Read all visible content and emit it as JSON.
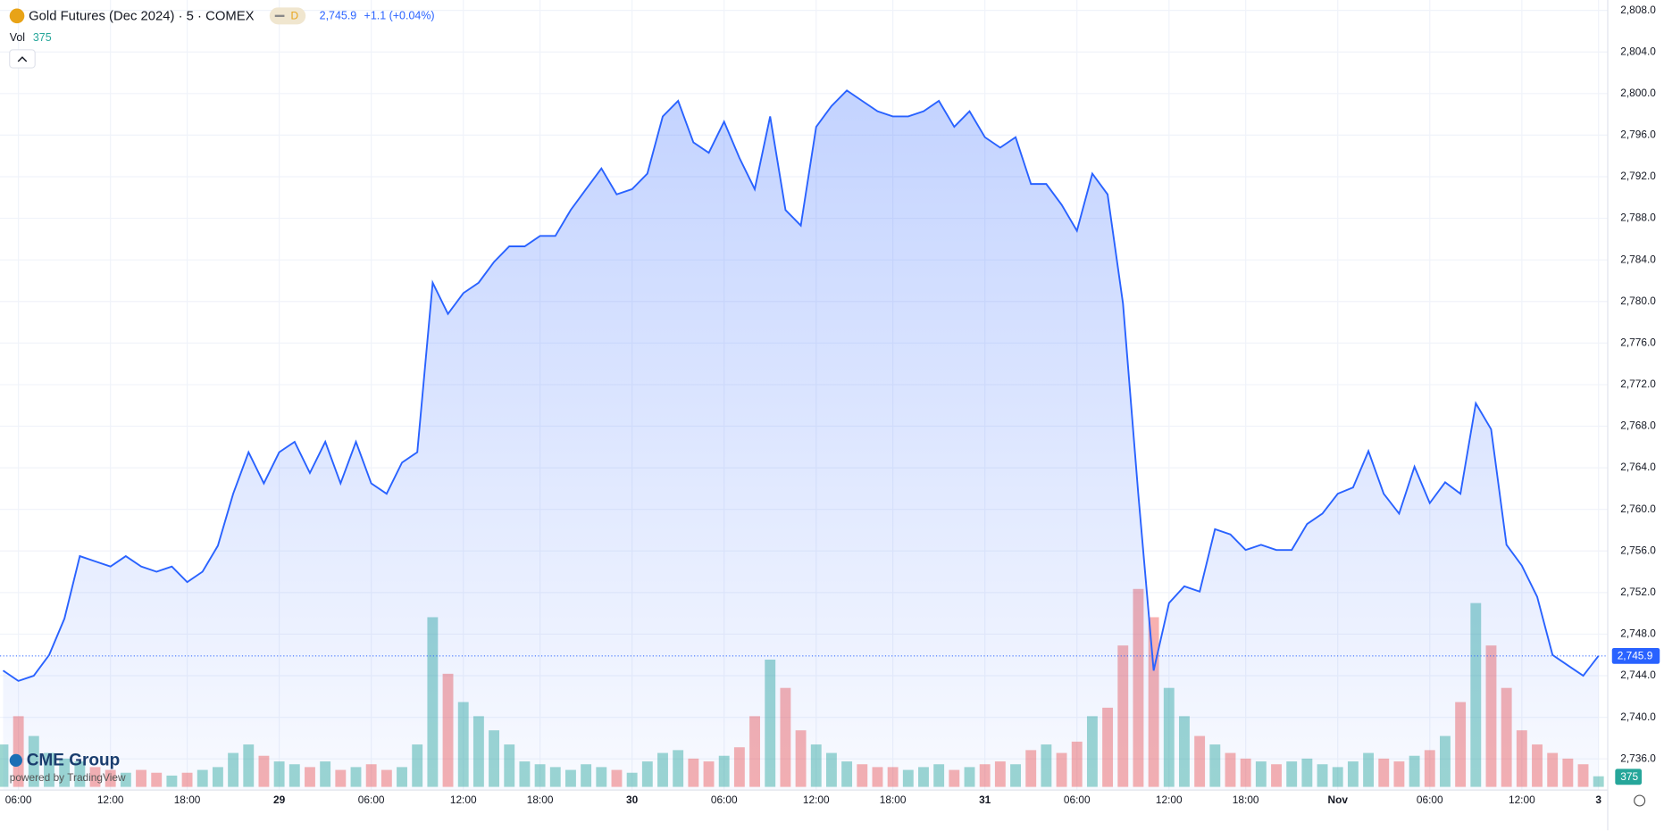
{
  "header": {
    "symbol": "Gold Futures (Dec 2024) · 5 · COMEX",
    "interval_badge": "D",
    "change": "+1.1 (+0.04%)",
    "vol_label": "Vol",
    "vol_value": "375"
  },
  "branding": {
    "name": "CME Group",
    "powered": "powered by TradingView"
  },
  "chart_data": {
    "type": "area",
    "last_price": {
      "value": 2745.9,
      "label": "2,745.9"
    },
    "xlim": [
      -0.2,
      104.6
    ],
    "xticks": [
      {
        "value": 1,
        "label": "06:00"
      },
      {
        "value": 7,
        "label": "12:00"
      },
      {
        "value": 12,
        "label": "18:00"
      },
      {
        "value": 18,
        "label": "29"
      },
      {
        "value": 24,
        "label": "06:00"
      },
      {
        "value": 30,
        "label": "12:00"
      },
      {
        "value": 35,
        "label": "18:00"
      },
      {
        "value": 41,
        "label": "30"
      },
      {
        "value": 47,
        "label": "06:00"
      },
      {
        "value": 53,
        "label": "12:00"
      },
      {
        "value": 58,
        "label": "18:00"
      },
      {
        "value": 64,
        "label": "31"
      },
      {
        "value": 70,
        "label": "06:00"
      },
      {
        "value": 76,
        "label": "12:00"
      },
      {
        "value": 81,
        "label": "18:00"
      },
      {
        "value": 87,
        "label": "Nov"
      },
      {
        "value": 93,
        "label": "06:00"
      },
      {
        "value": 99,
        "label": "12:00"
      },
      {
        "value": 104,
        "label": "3"
      }
    ],
    "ylim": [
      2733,
      2809
    ],
    "yticks": [
      {
        "value": 2736,
        "label": "2,736.0"
      },
      {
        "value": 2740,
        "label": "2,740.0"
      },
      {
        "value": 2744,
        "label": "2,744.0"
      },
      {
        "value": 2748,
        "label": "2,748.0"
      },
      {
        "value": 2752,
        "label": "2,752.0"
      },
      {
        "value": 2756,
        "label": "2,756.0"
      },
      {
        "value": 2760,
        "label": "2,760.0"
      },
      {
        "value": 2764,
        "label": "2,764.0"
      },
      {
        "value": 2768,
        "label": "2,768.0"
      },
      {
        "value": 2772,
        "label": "2,772.0"
      },
      {
        "value": 2776,
        "label": "2,776.0"
      },
      {
        "value": 2780,
        "label": "2,780.0"
      },
      {
        "value": 2784,
        "label": "2,784.0"
      },
      {
        "value": 2788,
        "label": "2,788.0"
      },
      {
        "value": 2792,
        "label": "2,792.0"
      },
      {
        "value": 2796,
        "label": "2,796.0"
      },
      {
        "value": 2800,
        "label": "2,800.0"
      },
      {
        "value": 2804,
        "label": "2,804.0"
      },
      {
        "value": 2808,
        "label": "2,808.0"
      }
    ],
    "grid": true,
    "series": [
      {
        "name": "Price",
        "color": "#2962ff",
        "values": [
          2744.5,
          2743.5,
          2744.0,
          2746.0,
          2749.5,
          2755.5,
          2755,
          2754.5,
          2755.5,
          2754.5,
          2754,
          2754.5,
          2753,
          2754,
          2756.5,
          2761.5,
          2765.5,
          2762.5,
          2765.5,
          2766.5,
          2763.5,
          2766.5,
          2762.5,
          2766.5,
          2762.5,
          2761.5,
          2764.5,
          2765.5,
          2781.8,
          2778.8,
          2780.8,
          2781.8,
          2783.8,
          2785.3,
          2785.3,
          2786.3,
          2786.3,
          2788.8,
          2790.8,
          2792.8,
          2790.3,
          2790.8,
          2792.3,
          2797.8,
          2799.3,
          2795.3,
          2794.3,
          2797.3,
          2793.8,
          2790.8,
          2797.8,
          2788.8,
          2787.3,
          2796.8,
          2798.8,
          2800.3,
          2799.3,
          2798.3,
          2797.8,
          2797.8,
          2798.3,
          2799.3,
          2796.8,
          2798.3,
          2795.8,
          2794.8,
          2795.8,
          2791.3,
          2791.3,
          2789.3,
          2786.8,
          2792.3,
          2790.3,
          2779.8,
          2761.5,
          2744.5,
          2751,
          2752.6,
          2752.1,
          2758.1,
          2757.6,
          2756.1,
          2756.6,
          2756.1,
          2756.1,
          2758.6,
          2759.6,
          2761.5,
          2762.1,
          2765.6,
          2761.5,
          2759.6,
          2764.1,
          2760.6,
          2762.6,
          2761.5,
          2770.2,
          2767.7,
          2756.6,
          2754.6,
          2751.6,
          2746.0,
          2745.0,
          2744.0,
          2745.9
        ]
      },
      {
        "name": "Vol",
        "axis": "y2",
        "up_color": "#26a69a",
        "down_color": "#ef5350",
        "values": [
          1500,
          2500,
          1800,
          1200,
          1000,
          900,
          700,
          600,
          500,
          600,
          500,
          400,
          500,
          600,
          700,
          1200,
          1500,
          1100,
          900,
          800,
          700,
          900,
          600,
          700,
          800,
          600,
          700,
          1500,
          6000,
          4000,
          3000,
          2500,
          2000,
          1500,
          900,
          800,
          700,
          600,
          800,
          700,
          600,
          500,
          900,
          1200,
          1300,
          1000,
          900,
          1100,
          1400,
          2500,
          4500,
          3500,
          2000,
          1500,
          1200,
          900,
          800,
          700,
          700,
          600,
          700,
          800,
          600,
          700,
          800,
          900,
          800,
          1300,
          1500,
          1200,
          1600,
          2500,
          2800,
          5000,
          7000,
          6000,
          3500,
          2500,
          1800,
          1500,
          1200,
          1000,
          900,
          800,
          900,
          1000,
          800,
          700,
          900,
          1200,
          1000,
          900,
          1100,
          1300,
          1800,
          3000,
          6500,
          5000,
          3500,
          2000,
          1500,
          1200,
          1000,
          800,
          375
        ]
      }
    ],
    "y2lim": [
      0,
      7500
    ]
  }
}
